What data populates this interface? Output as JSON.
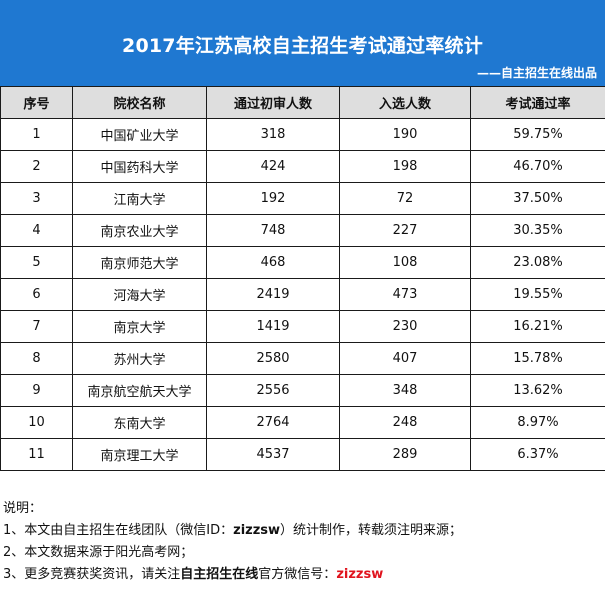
{
  "header": {
    "title": "2017年江苏高校自主招生考试通过率统计",
    "subtitle": "——自主招生在线出品",
    "background": "#1f78d1"
  },
  "table": {
    "columns": [
      "序号",
      "院校名称",
      "通过初审人数",
      "入选人数",
      "考试通过率"
    ],
    "rows": [
      [
        "1",
        "中国矿业大学",
        "318",
        "190",
        "59.75%"
      ],
      [
        "2",
        "中国药科大学",
        "424",
        "198",
        "46.70%"
      ],
      [
        "3",
        "江南大学",
        "192",
        "72",
        "37.50%"
      ],
      [
        "4",
        "南京农业大学",
        "748",
        "227",
        "30.35%"
      ],
      [
        "5",
        "南京师范大学",
        "468",
        "108",
        "23.08%"
      ],
      [
        "6",
        "河海大学",
        "2419",
        "473",
        "19.55%"
      ],
      [
        "7",
        "南京大学",
        "1419",
        "230",
        "16.21%"
      ],
      [
        "8",
        "苏州大学",
        "2580",
        "407",
        "15.78%"
      ],
      [
        "9",
        "南京航空航天大学",
        "2556",
        "348",
        "13.62%"
      ],
      [
        "10",
        "东南大学",
        "2764",
        "248",
        "8.97%"
      ],
      [
        "11",
        "南京理工大学",
        "4537",
        "289",
        "6.37%"
      ]
    ]
  },
  "notes": {
    "heading": "说明：",
    "line1_prefix": "1、本文由自主招生在线团队（微信ID：",
    "line1_id": "zizzsw",
    "line1_suffix": "）统计制作，转载须注明来源；",
    "line2": "2、本文数据来源于阳光高考网；",
    "line3_prefix": "3、更多竞赛获奖资讯，请关注",
    "line3_bold": "自主招生在线",
    "line3_mid": "官方微信号：",
    "line3_id": "zizzsw",
    "highlight_color": "#e0141e"
  }
}
